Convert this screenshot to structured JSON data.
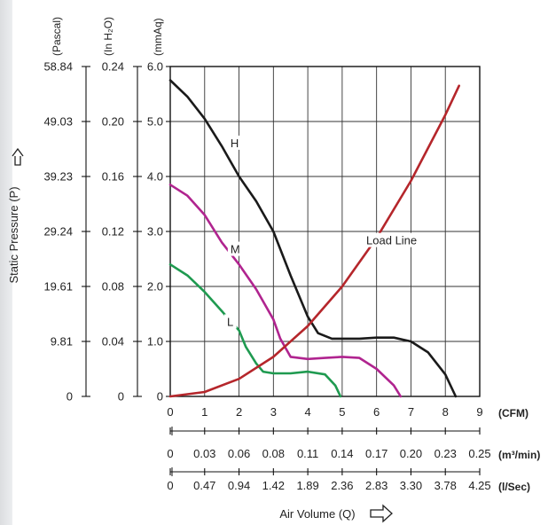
{
  "chart_data": {
    "type": "line",
    "ylabel": "Static Pressure (P)",
    "xlabel": "Air Volume (Q)",
    "y_axes": [
      {
        "unit": "(Pascal)",
        "ticks": [
          "58.84",
          "49.03",
          "39.23",
          "29.24",
          "19.61",
          "9.81",
          "0"
        ]
      },
      {
        "unit": "(In H₂O)",
        "ticks": [
          "0.24",
          "0.20",
          "0.16",
          "0.12",
          "0.08",
          "0.04",
          "0"
        ]
      },
      {
        "unit": "(mmAq)",
        "ticks": [
          "6.0",
          "5.0",
          "4.0",
          "3.0",
          "2.0",
          "1.0",
          "0"
        ]
      }
    ],
    "x_axes": [
      {
        "unit": "(CFM)",
        "ticks": [
          "0",
          "1",
          "2",
          "3",
          "4",
          "5",
          "6",
          "7",
          "8",
          "9"
        ]
      },
      {
        "unit": "(m³/min)",
        "ticks": [
          "0",
          "0.03",
          "0.06",
          "0.08",
          "0.11",
          "0.14",
          "0.17",
          "0.20",
          "0.23",
          "0.25"
        ]
      },
      {
        "unit": "(l/Sec)",
        "ticks": [
          "0",
          "0.47",
          "0.94",
          "1.42",
          "1.89",
          "2.36",
          "2.83",
          "3.30",
          "3.78",
          "4.25"
        ]
      }
    ],
    "xlim": [
      0,
      9
    ],
    "ylim": [
      0,
      6
    ],
    "grid": true,
    "series": [
      {
        "name": "H",
        "color": "#1a1a1a",
        "x": [
          0,
          0.5,
          1.0,
          1.5,
          2.0,
          2.5,
          3.0,
          3.5,
          4.0,
          4.3,
          4.7,
          5.5,
          6.0,
          6.5,
          7.0,
          7.5,
          8.0,
          8.3
        ],
        "y": [
          5.75,
          5.45,
          5.05,
          4.55,
          4.0,
          3.55,
          3.0,
          2.2,
          1.45,
          1.15,
          1.05,
          1.05,
          1.07,
          1.07,
          1.0,
          0.8,
          0.4,
          0.0
        ]
      },
      {
        "name": "M",
        "color": "#b0248f",
        "x": [
          0,
          0.5,
          1.0,
          1.5,
          2.0,
          2.5,
          3.0,
          3.2,
          3.5,
          4.0,
          4.5,
          5.0,
          5.5,
          6.0,
          6.5,
          6.7
        ],
        "y": [
          3.85,
          3.65,
          3.3,
          2.8,
          2.4,
          1.95,
          1.4,
          1.05,
          0.72,
          0.68,
          0.7,
          0.72,
          0.7,
          0.5,
          0.2,
          0.0
        ]
      },
      {
        "name": "L",
        "color": "#1f9a50",
        "x": [
          0,
          0.5,
          1.0,
          1.5,
          2.0,
          2.2,
          2.5,
          2.7,
          3.0,
          3.5,
          4.0,
          4.5,
          4.8,
          4.95
        ],
        "y": [
          2.4,
          2.2,
          1.9,
          1.55,
          1.2,
          0.9,
          0.6,
          0.45,
          0.42,
          0.42,
          0.45,
          0.4,
          0.2,
          0.0
        ]
      },
      {
        "name": "Load Line",
        "color": "#b5262b",
        "x": [
          0,
          1.0,
          2.0,
          3.0,
          4.0,
          5.0,
          6.0,
          7.0,
          8.0,
          8.4
        ],
        "y": [
          0,
          0.08,
          0.32,
          0.72,
          1.28,
          2.0,
          2.88,
          3.92,
          5.12,
          5.65
        ]
      }
    ],
    "annotations": [
      {
        "text": "H",
        "x": 1.75,
        "y": 4.55
      },
      {
        "text": "M",
        "x": 1.75,
        "y": 2.62
      },
      {
        "text": "L",
        "x": 1.65,
        "y": 1.3
      },
      {
        "text": "Load Line",
        "x": 5.7,
        "y": 2.78
      }
    ]
  }
}
